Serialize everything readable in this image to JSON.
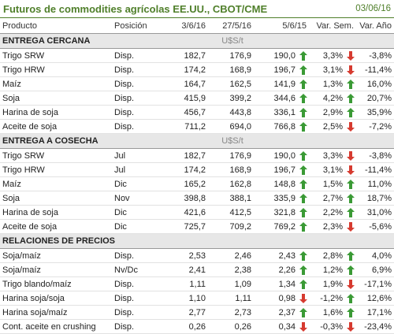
{
  "header": {
    "title": "Futuros de commodities agrícolas EE.UU., CBOT/CME",
    "date": "03/06/16"
  },
  "columns": [
    "Producto",
    "Posición",
    "3/6/16",
    "27/5/16",
    "5/6/15",
    "Var. Sem.",
    "Var. Año"
  ],
  "sections": [
    {
      "title": "ENTREGA CERCANA",
      "unit": "U$S/t",
      "rows": [
        {
          "product": "Trigo SRW",
          "position": "Disp.",
          "d1": "182,7",
          "d2": "176,9",
          "d3": "190,0",
          "wk_arrow": "up",
          "wk": "3,3%",
          "yr_arrow": "down",
          "yr": "-3,8%"
        },
        {
          "product": "Trigo HRW",
          "position": "Disp.",
          "d1": "174,2",
          "d2": "168,9",
          "d3": "196,7",
          "wk_arrow": "up",
          "wk": "3,1%",
          "yr_arrow": "down",
          "yr": "-11,4%"
        },
        {
          "product": "Maíz",
          "position": "Disp.",
          "d1": "164,7",
          "d2": "162,5",
          "d3": "141,9",
          "wk_arrow": "up",
          "wk": "1,3%",
          "yr_arrow": "up",
          "yr": "16,0%"
        },
        {
          "product": "Soja",
          "position": "Disp.",
          "d1": "415,9",
          "d2": "399,2",
          "d3": "344,6",
          "wk_arrow": "up",
          "wk": "4,2%",
          "yr_arrow": "up",
          "yr": "20,7%"
        },
        {
          "product": "Harina de soja",
          "position": "Disp.",
          "d1": "456,7",
          "d2": "443,8",
          "d3": "336,1",
          "wk_arrow": "up",
          "wk": "2,9%",
          "yr_arrow": "up",
          "yr": "35,9%"
        },
        {
          "product": "Aceite de soja",
          "position": "Disp.",
          "d1": "711,2",
          "d2": "694,0",
          "d3": "766,8",
          "wk_arrow": "up",
          "wk": "2,5%",
          "yr_arrow": "down",
          "yr": "-7,2%"
        }
      ]
    },
    {
      "title": "ENTREGA A COSECHA",
      "unit": "U$S/t",
      "rows": [
        {
          "product": "Trigo SRW",
          "position": "Jul",
          "d1": "182,7",
          "d2": "176,9",
          "d3": "190,0",
          "wk_arrow": "up",
          "wk": "3,3%",
          "yr_arrow": "down",
          "yr": "-3,8%"
        },
        {
          "product": "Trigo HRW",
          "position": "Jul",
          "d1": "174,2",
          "d2": "168,9",
          "d3": "196,7",
          "wk_arrow": "up",
          "wk": "3,1%",
          "yr_arrow": "down",
          "yr": "-11,4%"
        },
        {
          "product": "Maíz",
          "position": "Dic",
          "d1": "165,2",
          "d2": "162,8",
          "d3": "148,8",
          "wk_arrow": "up",
          "wk": "1,5%",
          "yr_arrow": "up",
          "yr": "11,0%"
        },
        {
          "product": "Soja",
          "position": "Nov",
          "d1": "398,8",
          "d2": "388,1",
          "d3": "335,9",
          "wk_arrow": "up",
          "wk": "2,7%",
          "yr_arrow": "up",
          "yr": "18,7%"
        },
        {
          "product": "Harina de soja",
          "position": "Dic",
          "d1": "421,6",
          "d2": "412,5",
          "d3": "321,8",
          "wk_arrow": "up",
          "wk": "2,2%",
          "yr_arrow": "up",
          "yr": "31,0%"
        },
        {
          "product": "Aceite de soja",
          "position": "Dic",
          "d1": "725,7",
          "d2": "709,2",
          "d3": "769,2",
          "wk_arrow": "up",
          "wk": "2,3%",
          "yr_arrow": "down",
          "yr": "-5,6%"
        }
      ]
    },
    {
      "title": "RELACIONES DE PRECIOS",
      "rows": [
        {
          "product": "Soja/maíz",
          "position": "Disp.",
          "d1": "2,53",
          "d2": "2,46",
          "d3": "2,43",
          "wk_arrow": "up",
          "wk": "2,8%",
          "yr_arrow": "up",
          "yr": "4,0%"
        },
        {
          "product": "Soja/maíz",
          "position": "Nv/Dc",
          "d1": "2,41",
          "d2": "2,38",
          "d3": "2,26",
          "wk_arrow": "up",
          "wk": "1,2%",
          "yr_arrow": "up",
          "yr": "6,9%"
        },
        {
          "product": "Trigo blando/maíz",
          "position": "Disp.",
          "d1": "1,11",
          "d2": "1,09",
          "d3": "1,34",
          "wk_arrow": "up",
          "wk": "1,9%",
          "yr_arrow": "down",
          "yr": "-17,1%"
        },
        {
          "product": "Harina soja/soja",
          "position": "Disp.",
          "d1": "1,10",
          "d2": "1,11",
          "d3": "0,98",
          "wk_arrow": "down",
          "wk": "-1,2%",
          "yr_arrow": "up",
          "yr": "12,6%"
        },
        {
          "product": "Harina soja/maíz",
          "position": "Disp.",
          "d1": "2,77",
          "d2": "2,73",
          "d3": "2,37",
          "wk_arrow": "up",
          "wk": "1,6%",
          "yr_arrow": "up",
          "yr": "17,1%"
        },
        {
          "product": "Cont. aceite en crushing",
          "position": "Disp.",
          "d1": "0,26",
          "d2": "0,26",
          "d3": "0,34",
          "wk_arrow": "down",
          "wk": "-0,3%",
          "yr_arrow": "down",
          "yr": "-23,4%"
        }
      ]
    }
  ]
}
